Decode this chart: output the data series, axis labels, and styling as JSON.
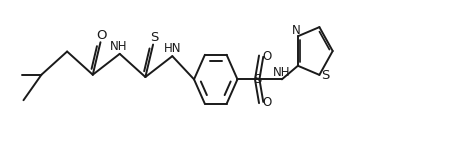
{
  "bg_color": "#ffffff",
  "line_color": "#1a1a1a",
  "line_width": 1.4,
  "font_size": 8.5,
  "figsize": [
    4.54,
    1.61
  ],
  "dpi": 100,
  "xlim": [
    0.0,
    4.6
  ],
  "ylim": [
    -0.15,
    1.1
  ]
}
